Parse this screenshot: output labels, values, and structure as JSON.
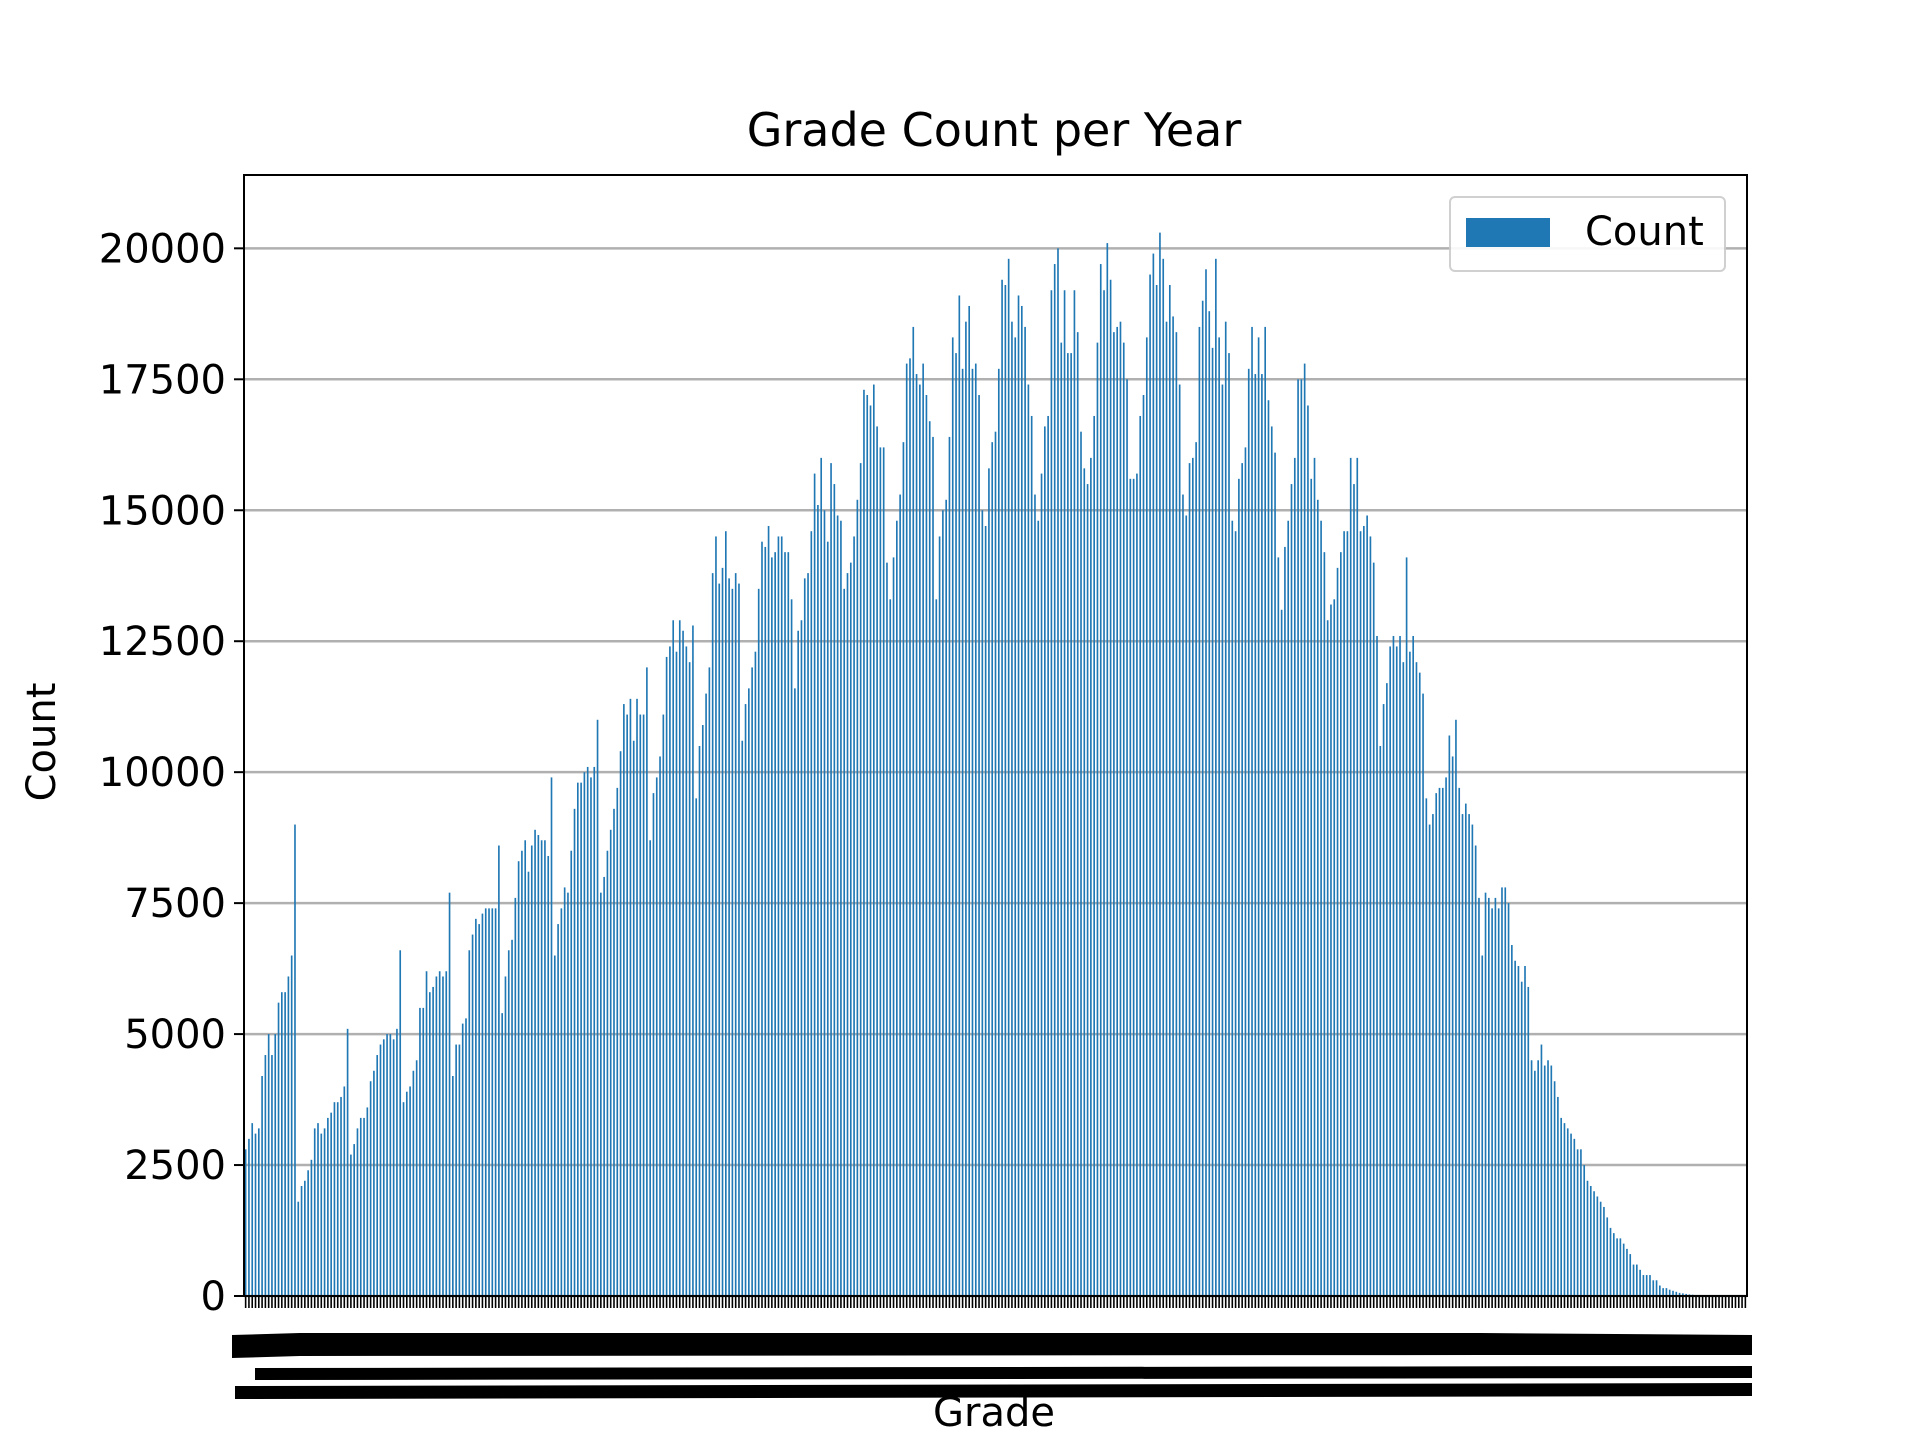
{
  "chart_data": {
    "type": "bar",
    "title": "Grade Count per Year",
    "xlabel": "Grade",
    "ylabel": "Count",
    "ylim": [
      0,
      21400
    ],
    "yticks": [
      "0",
      "2500",
      "5000",
      "7500",
      "10000",
      "12500",
      "15000",
      "17500",
      "20000"
    ],
    "grid": "horizontal",
    "legend_position": "top-right",
    "bar_color": "#1f77b4",
    "series": [
      {
        "name": "Count",
        "values": [
          2800,
          3000,
          3300,
          3100,
          3200,
          4200,
          4600,
          5000,
          4600,
          5000,
          5600,
          5800,
          5800,
          6100,
          6500,
          9000,
          1800,
          2100,
          2200,
          2400,
          2600,
          3200,
          3300,
          3100,
          3200,
          3400,
          3500,
          3700,
          3700,
          3800,
          4000,
          5100,
          2700,
          2900,
          3200,
          3400,
          3400,
          3600,
          4100,
          4300,
          4600,
          4800,
          4900,
          5000,
          5000,
          4900,
          5100,
          6600,
          3700,
          3900,
          4000,
          4300,
          4500,
          5500,
          5500,
          6200,
          5800,
          5900,
          6100,
          6200,
          6100,
          6200,
          7700,
          4200,
          4800,
          4800,
          5200,
          5300,
          6600,
          6900,
          7200,
          7100,
          7300,
          7400,
          7400,
          7400,
          7400,
          8600,
          5400,
          6100,
          6600,
          6800,
          7600,
          8300,
          8500,
          8700,
          8100,
          8600,
          8900,
          8800,
          8700,
          8700,
          8400,
          9900,
          6500,
          7100,
          7400,
          7800,
          7700,
          8500,
          9300,
          9800,
          9800,
          10000,
          10100,
          9900,
          10100,
          11000,
          7700,
          8000,
          8500,
          8900,
          9300,
          9700,
          10400,
          11300,
          11100,
          11400,
          10600,
          11400,
          11100,
          11100,
          12000,
          8700,
          9600,
          9900,
          10300,
          11100,
          12200,
          12400,
          12900,
          12300,
          12900,
          12700,
          12400,
          12100,
          12800,
          9500,
          10500,
          10900,
          11500,
          12000,
          13800,
          14500,
          13600,
          13900,
          14600,
          13700,
          13500,
          13800,
          13600,
          10600,
          11300,
          11600,
          12000,
          12300,
          13500,
          14400,
          14300,
          14700,
          14100,
          14200,
          14500,
          14500,
          14200,
          14200,
          13300,
          11600,
          12700,
          12900,
          13700,
          13800,
          14600,
          15700,
          15100,
          16000,
          15000,
          14400,
          15900,
          15500,
          14900,
          14800,
          13500,
          13800,
          14000,
          14500,
          15200,
          15900,
          17300,
          17200,
          17000,
          17400,
          16600,
          16200,
          16200,
          14000,
          13300,
          14100,
          14800,
          15300,
          16300,
          17800,
          17900,
          18500,
          17600,
          17400,
          17800,
          17200,
          16700,
          16400,
          13300,
          14500,
          15000,
          15200,
          16400,
          18300,
          18000,
          19100,
          17700,
          18600,
          18900,
          17700,
          17800,
          17200,
          15000,
          14700,
          15800,
          16300,
          16500,
          17700,
          19400,
          19300,
          19800,
          18600,
          18300,
          19100,
          18900,
          18500,
          17400,
          16800,
          15300,
          14800,
          15700,
          16600,
          16800,
          19200,
          19700,
          20000,
          18200,
          19200,
          18000,
          18000,
          19200,
          18400,
          16500,
          15800,
          15500,
          16000,
          16800,
          18200,
          19700,
          19200,
          20100,
          19400,
          18400,
          18500,
          18600,
          18200,
          17500,
          15600,
          15600,
          15700,
          16800,
          17200,
          18300,
          19500,
          19900,
          19300,
          20300,
          19800,
          18600,
          19300,
          18700,
          18400,
          17400,
          15300,
          14900,
          15900,
          16000,
          16300,
          18500,
          19000,
          19600,
          18800,
          18100,
          19800,
          18300,
          17400,
          18600,
          18000,
          14800,
          14600,
          15600,
          15900,
          16200,
          17700,
          18500,
          17600,
          18300,
          17600,
          18500,
          17100,
          16600,
          16100,
          14100,
          13100,
          14300,
          14800,
          15500,
          16000,
          17500,
          17500,
          17800,
          17000,
          15600,
          16000,
          15200,
          14800,
          14200,
          12900,
          13200,
          13300,
          13900,
          14200,
          14600,
          14600,
          16000,
          15500,
          16000,
          14600,
          14700,
          14900,
          14500,
          14000,
          12600,
          10500,
          11300,
          11700,
          12400,
          12600,
          12400,
          12600,
          12100,
          14100,
          12300,
          12600,
          12100,
          11900,
          11500,
          9500,
          9000,
          9200,
          9600,
          9700,
          9700,
          9900,
          10700,
          10300,
          11000,
          9700,
          9200,
          9400,
          9200,
          9000,
          8600,
          7600,
          6500,
          7700,
          7600,
          7400,
          7600,
          7400,
          7800,
          7800,
          7500,
          6700,
          6400,
          6300,
          6000,
          6300,
          5900,
          4500,
          4300,
          4500,
          4800,
          4400,
          4500,
          4400,
          4100,
          3800,
          3400,
          3300,
          3200,
          3100,
          3000,
          2800,
          2800,
          2500,
          2200,
          2100,
          2000,
          1900,
          1800,
          1700,
          1500,
          1300,
          1200,
          1100,
          1100,
          1000,
          900,
          800,
          600,
          600,
          500,
          400,
          400,
          400,
          300,
          300,
          200,
          150,
          150,
          120,
          100,
          80,
          60,
          50,
          40,
          30,
          25,
          20,
          20,
          15,
          15,
          10,
          10,
          10,
          5,
          5,
          5,
          5,
          5,
          5,
          5,
          5,
          5
        ]
      }
    ]
  }
}
